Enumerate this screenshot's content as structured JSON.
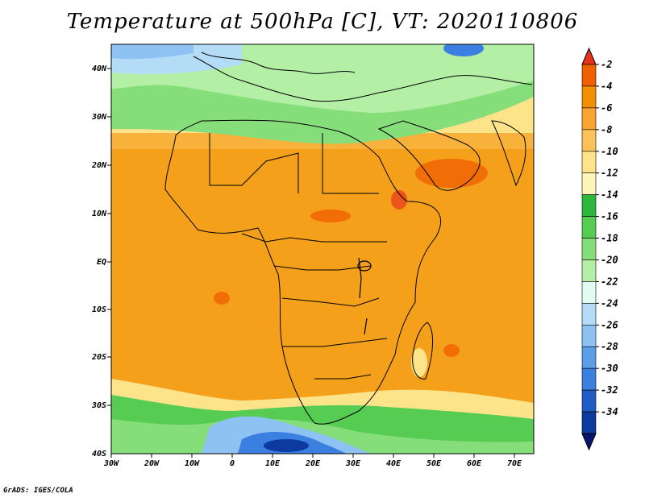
{
  "title": "Temperature at 500hPa [C], VT: 2020110806",
  "footer": "GrADS: IGES/COLA",
  "map": {
    "lon_ticks": [
      "30W",
      "20W",
      "10W",
      "0",
      "10E",
      "20E",
      "30E",
      "40E",
      "50E",
      "60E",
      "70E"
    ],
    "lat_ticks": [
      "40N",
      "30N",
      "20N",
      "10N",
      "EQ",
      "10S",
      "20S",
      "30S",
      "40S"
    ]
  },
  "colorbar": {
    "labels": [
      "-2",
      "-4",
      "-6",
      "-8",
      "-10",
      "-12",
      "-14",
      "-16",
      "-18",
      "-20",
      "-22",
      "-24",
      "-26",
      "-28",
      "-30",
      "-32",
      "-34"
    ],
    "colors": [
      "#e8331c",
      "#f06000",
      "#f48f00",
      "#f8a431",
      "#fbc259",
      "#fde48a",
      "#fff5b8",
      "#2db83b",
      "#56cc52",
      "#86de7a",
      "#b4efa6",
      "#e2fbf2",
      "#b4dcf6",
      "#8dc2f2",
      "#5a9ee8",
      "#3b7fe0",
      "#1f5cc8",
      "#0d3a9e",
      "#0a1470"
    ]
  }
}
